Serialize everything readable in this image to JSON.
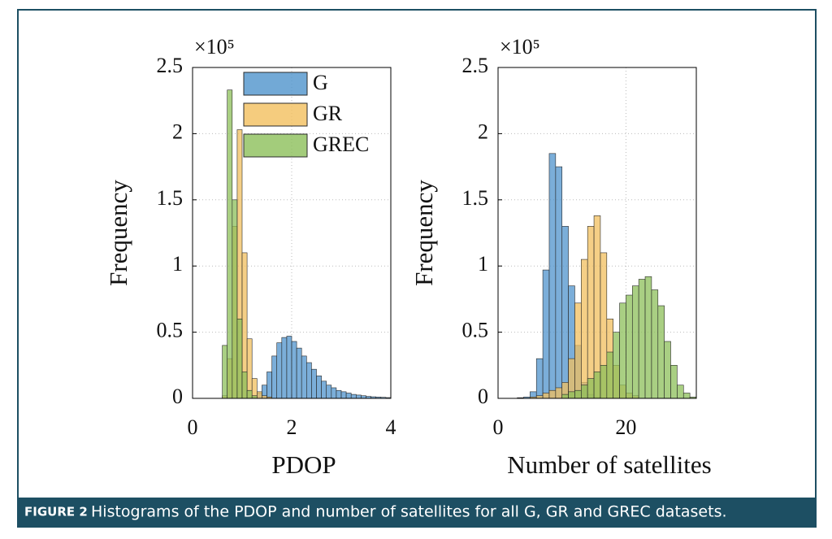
{
  "chart_data": [
    {
      "type": "histogram",
      "xlabel": "PDOP",
      "ylabel": "Frequency",
      "y_multiplier": "×10⁵",
      "bins": [
        0.5,
        0.6,
        0.7,
        0.8,
        0.9,
        1.0,
        1.1,
        1.2,
        1.3,
        1.4,
        1.5,
        1.6,
        1.7,
        1.8,
        1.9,
        2.0,
        2.1,
        2.2,
        2.3,
        2.4,
        2.5,
        2.6,
        2.7,
        2.8,
        2.9,
        3.0,
        3.1,
        3.2,
        3.3,
        3.4,
        3.5,
        3.6,
        3.7,
        3.8,
        3.9,
        4.0
      ],
      "series": [
        {
          "name": "G",
          "color": "#4f93cc",
          "values": [
            0,
            0,
            0,
            0,
            0,
            0,
            0,
            0.01,
            0.04,
            0.1,
            0.2,
            0.32,
            0.42,
            0.46,
            0.47,
            0.43,
            0.38,
            0.32,
            0.27,
            0.22,
            0.17,
            0.13,
            0.1,
            0.08,
            0.06,
            0.05,
            0.04,
            0.03,
            0.025,
            0.02,
            0.015,
            0.012,
            0.01,
            0.008,
            0.006
          ]
        },
        {
          "name": "GR",
          "color": "#f2bf5e",
          "values": [
            0,
            0.02,
            0.3,
            1.3,
            2.03,
            1.1,
            0.45,
            0.15,
            0.05,
            0.02,
            0.01,
            0,
            0,
            0,
            0,
            0,
            0,
            0,
            0,
            0,
            0,
            0,
            0,
            0,
            0,
            0,
            0,
            0,
            0,
            0,
            0,
            0,
            0,
            0,
            0
          ]
        },
        {
          "name": "GREC",
          "color": "#8cbf5a",
          "values": [
            0,
            0.4,
            2.33,
            1.5,
            0.6,
            0.2,
            0.06,
            0.02,
            0,
            0,
            0,
            0,
            0,
            0,
            0,
            0,
            0,
            0,
            0,
            0,
            0,
            0,
            0,
            0,
            0,
            0,
            0,
            0,
            0,
            0,
            0,
            0,
            0,
            0,
            0
          ]
        }
      ],
      "xlim": [
        0,
        4
      ],
      "xticks": [
        0,
        2,
        4
      ],
      "ylim": [
        0,
        2.5
      ],
      "yticks": [
        0,
        0.5,
        1,
        1.5,
        2,
        2.5
      ],
      "grid": true,
      "legend": "top"
    },
    {
      "type": "histogram",
      "xlabel": "Number of satellites",
      "ylabel": "Frequency",
      "y_multiplier": "×10⁵",
      "bins": [
        0,
        1,
        2,
        3,
        4,
        5,
        6,
        7,
        8,
        9,
        10,
        11,
        12,
        13,
        14,
        15,
        16,
        17,
        18,
        19,
        20,
        21,
        22,
        23,
        24,
        25,
        26,
        27,
        28,
        29,
        30,
        31
      ],
      "series": [
        {
          "color": "#4f93cc",
          "values": [
            0,
            0,
            0,
            0.005,
            0.01,
            0.05,
            0.3,
            0.97,
            1.85,
            1.75,
            1.3,
            0.85,
            0.4,
            0.12,
            0.03,
            0.01,
            0,
            0,
            0,
            0,
            0,
            0,
            0,
            0,
            0,
            0,
            0,
            0,
            0,
            0,
            0
          ]
        },
        {
          "color": "#f2bf5e",
          "values": [
            0,
            0,
            0,
            0,
            0,
            0.01,
            0.02,
            0.04,
            0.06,
            0.08,
            0.12,
            0.3,
            0.72,
            1.05,
            1.3,
            1.38,
            1.1,
            0.6,
            0.25,
            0.1,
            0.04,
            0.02,
            0,
            0,
            0,
            0,
            0,
            0,
            0,
            0,
            0
          ]
        },
        {
          "color": "#8cbf5a",
          "values": [
            0,
            0,
            0,
            0,
            0,
            0,
            0,
            0,
            0,
            0,
            0.03,
            0.05,
            0.06,
            0.1,
            0.15,
            0.2,
            0.25,
            0.35,
            0.5,
            0.72,
            0.78,
            0.85,
            0.9,
            0.92,
            0.82,
            0.7,
            0.43,
            0.25,
            0.1,
            0.04,
            0.01
          ]
        }
      ],
      "xlim": [
        0,
        31
      ],
      "xticks": [
        0,
        20
      ],
      "ylim": [
        0,
        2.5
      ],
      "yticks": [
        0,
        0.5,
        1,
        1.5,
        2,
        2.5
      ],
      "grid": true
    }
  ],
  "caption": {
    "label": "FIGURE 2",
    "text": "Histograms of the PDOP and number of satellites for all G, GR and GREC datasets."
  }
}
